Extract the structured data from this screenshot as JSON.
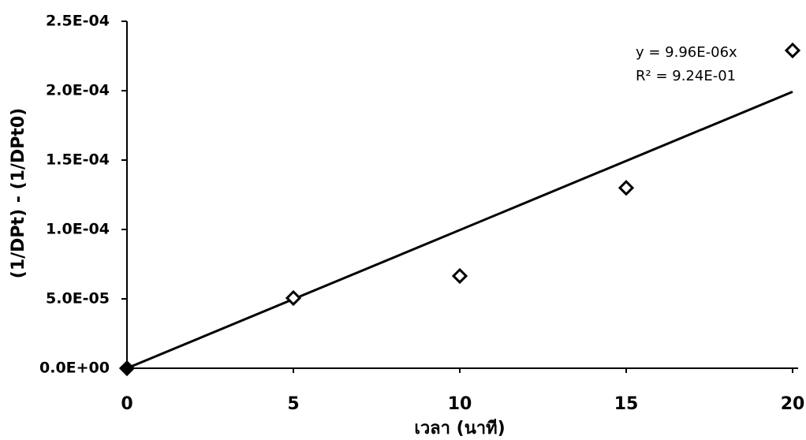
{
  "chart_data": {
    "type": "scatter",
    "xlabel": "เวลา (นาที)",
    "ylabel": "(1/DPt) - (1/DPt0)",
    "x": [
      0,
      5,
      10,
      15,
      20
    ],
    "series": [
      {
        "name": "data",
        "color": "#000000",
        "values": [
          0,
          5.06e-05,
          6.65e-05,
          0.00013,
          0.000229
        ]
      }
    ],
    "trendline": {
      "label": "y = 9.96E-06x",
      "r2_label": "R² = 9.24E-01",
      "slope": 9.96e-06
    },
    "xlim": [
      0,
      20
    ],
    "xticks": [
      0,
      5,
      10,
      15,
      20
    ],
    "ylim": [
      0,
      0.00025
    ],
    "yticks": [
      {
        "value": 0,
        "label": "0.0E+00"
      },
      {
        "value": 5e-05,
        "label": "5.0E-05"
      },
      {
        "value": 0.0001,
        "label": "1.0E-04"
      },
      {
        "value": 0.00015,
        "label": "1.5E-04"
      },
      {
        "value": 0.0002,
        "label": "2.0E-04"
      },
      {
        "value": 0.00025,
        "label": "2.5E-04"
      }
    ]
  }
}
